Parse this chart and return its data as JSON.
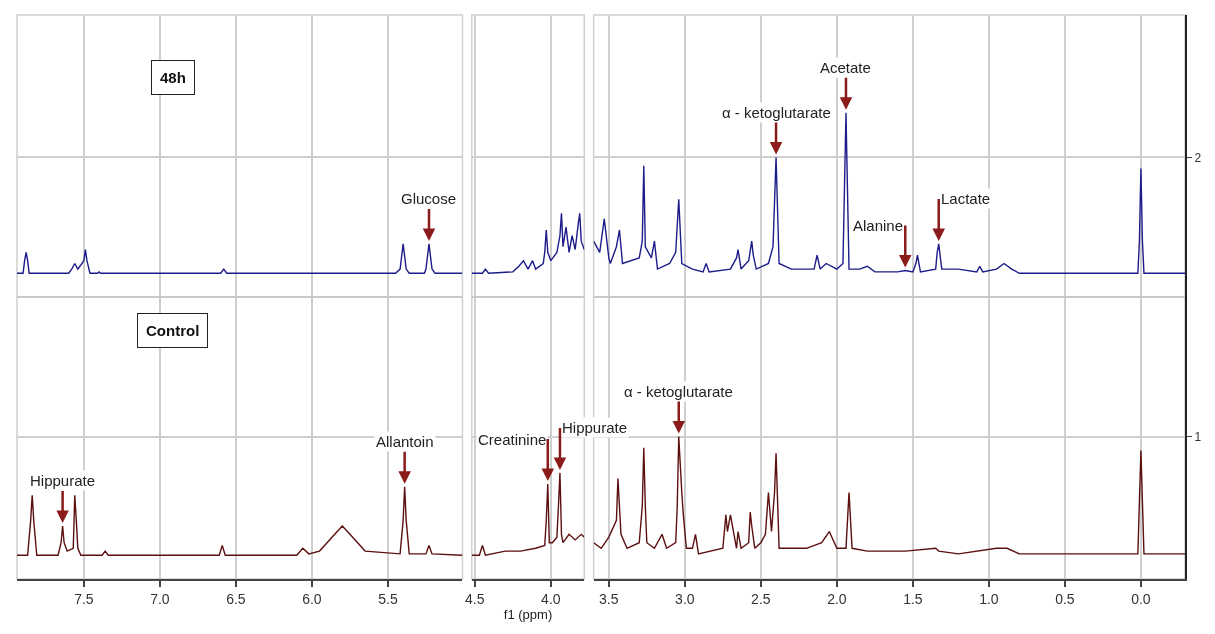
{
  "chart_data": [
    {
      "type": "line",
      "xlim": [
        7.94,
        5.01
      ],
      "xticks": [
        7.5,
        {
          "value": 7,
          "label": "7.0"
        },
        6.5,
        {
          "value": 6,
          "label": "6.0"
        },
        5.5
      ],
      "ylim": [
        0.49,
        2.51
      ],
      "yticks": [
        1,
        2
      ],
      "tick_labels": "x",
      "grid": true,
      "series": [
        {
          "color": "#1c1c8a",
          "x": [
            7.94,
            7.9,
            7.89,
            7.88,
            7.87,
            7.86,
            7.6,
            7.58,
            7.56,
            7.54,
            7.5,
            7.49,
            7.48,
            7.46,
            7.41,
            7.4,
            7.39,
            6.6,
            6.58,
            6.56,
            5.45,
            5.42,
            5.4,
            5.38,
            5.36,
            5.26,
            5.25,
            5.23,
            5.21,
            5.19,
            5.01
          ],
          "values": [
            1.585,
            1.585,
            1.63,
            1.66,
            1.63,
            1.585,
            1.585,
            1.6,
            1.62,
            1.6,
            1.63,
            1.67,
            1.63,
            1.585,
            1.585,
            1.59,
            1.585,
            1.585,
            1.6,
            1.585,
            1.585,
            1.6,
            1.69,
            1.6,
            1.585,
            1.585,
            1.6,
            1.69,
            1.6,
            1.585,
            1.585
          ]
        },
        {
          "color": "#5c0f0f",
          "x": [
            7.94,
            7.87,
            7.85,
            7.84,
            7.83,
            7.81,
            7.67,
            7.65,
            7.64,
            7.63,
            7.61,
            7.57,
            7.56,
            7.55,
            7.54,
            7.52,
            7.38,
            7.36,
            7.34,
            6.61,
            6.59,
            6.57,
            6.1,
            6.06,
            6.02,
            5.95,
            5.85,
            5.8,
            5.75,
            5.65,
            5.42,
            5.4,
            5.39,
            5.38,
            5.36,
            5.25,
            5.23,
            5.21,
            5.01
          ],
          "values": [
            0.575,
            0.575,
            0.7,
            0.79,
            0.7,
            0.575,
            0.575,
            0.62,
            0.68,
            0.62,
            0.59,
            0.6,
            0.79,
            0.7,
            0.6,
            0.575,
            0.575,
            0.59,
            0.575,
            0.575,
            0.61,
            0.575,
            0.575,
            0.6,
            0.58,
            0.59,
            0.65,
            0.68,
            0.65,
            0.59,
            0.58,
            0.7,
            0.82,
            0.7,
            0.58,
            0.58,
            0.61,
            0.58,
            0.575
          ]
        }
      ],
      "ref_lines": [
        {
          "axis": "y",
          "value": 1.5,
          "color": "#c8c8c8"
        }
      ],
      "annotations": [
        "48h",
        "Control",
        {
          "text": "Glucose",
          "x": 5.23,
          "y": 1.69
        },
        {
          "text": "Hippurate",
          "x": 7.64,
          "y": 0.68
        },
        {
          "text": "Allantoin",
          "x": 5.39,
          "y": 0.82
        }
      ]
    },
    {
      "type": "line",
      "xlim": [
        4.52,
        3.78
      ],
      "xticks": [
        4.5,
        {
          "value": 4,
          "label": "4.0"
        }
      ],
      "ylim": [
        0.49,
        2.51
      ],
      "yticks": [
        1,
        2
      ],
      "tick_labels": "x",
      "grid": true,
      "xlabel": "f1 (ppm)",
      "series": [
        {
          "color": "#1c1c8a",
          "x": [
            4.52,
            4.45,
            4.43,
            4.41,
            4.25,
            4.21,
            4.18,
            4.15,
            4.12,
            4.1,
            4.05,
            4.04,
            4.03,
            4.02,
            4.0,
            3.96,
            3.94,
            3.93,
            3.92,
            3.9,
            3.88,
            3.86,
            3.84,
            3.82,
            3.81,
            3.8,
            3.78
          ],
          "values": [
            1.585,
            1.585,
            1.6,
            1.585,
            1.59,
            1.61,
            1.63,
            1.6,
            1.63,
            1.6,
            1.62,
            1.66,
            1.74,
            1.66,
            1.63,
            1.66,
            1.72,
            1.8,
            1.68,
            1.75,
            1.66,
            1.72,
            1.67,
            1.76,
            1.8,
            1.7,
            1.67
          ]
        },
        {
          "color": "#5c0f0f",
          "x": [
            4.52,
            4.47,
            4.45,
            4.43,
            4.3,
            4.2,
            4.1,
            4.04,
            4.03,
            4.02,
            4.01,
            3.99,
            3.96,
            3.95,
            3.94,
            3.93,
            3.92,
            3.88,
            3.84,
            3.8,
            3.78
          ],
          "values": [
            0.575,
            0.575,
            0.61,
            0.575,
            0.59,
            0.59,
            0.6,
            0.61,
            0.7,
            0.83,
            0.62,
            0.62,
            0.64,
            0.75,
            0.87,
            0.65,
            0.62,
            0.65,
            0.63,
            0.65,
            0.64
          ]
        }
      ],
      "ref_lines": [
        {
          "axis": "y",
          "value": 1.5,
          "color": "#c8c8c8"
        }
      ],
      "annotations": [
        {
          "text": "Creatinine",
          "x": 4.02,
          "y": 0.83
        },
        {
          "text": "Hippurate",
          "x": 3.94,
          "y": 0.87
        }
      ]
    },
    {
      "type": "line",
      "xlim": [
        3.6,
        -0.29
      ],
      "xticks": [
        3.5,
        {
          "value": 3,
          "label": "3.0"
        },
        2.5,
        {
          "value": 2,
          "label": "2.0"
        },
        1.5,
        {
          "value": 1,
          "label": "1.0"
        },
        0.5,
        {
          "value": 0,
          "label": "0.0"
        }
      ],
      "ylim": [
        0.49,
        2.51
      ],
      "yticks": [
        1,
        2
      ],
      "grid": true,
      "series": [
        {
          "color": "#1c1c8a",
          "x": [
            3.6,
            3.56,
            3.53,
            3.5,
            3.49,
            3.45,
            3.43,
            3.41,
            3.3,
            3.28,
            3.27,
            3.26,
            3.22,
            3.2,
            3.18,
            3.1,
            3.06,
            3.04,
            3.02,
            2.95,
            2.88,
            2.86,
            2.84,
            2.7,
            2.66,
            2.65,
            2.63,
            2.58,
            2.56,
            2.55,
            2.53,
            2.45,
            2.42,
            2.4,
            2.38,
            2.3,
            2.15,
            2.13,
            2.11,
            2.07,
            2.0,
            1.96,
            1.94,
            1.92,
            1.85,
            1.8,
            1.75,
            1.6,
            1.55,
            1.5,
            1.48,
            1.47,
            1.45,
            1.35,
            1.34,
            1.33,
            1.31,
            1.2,
            1.08,
            1.06,
            1.04,
            0.95,
            0.9,
            0.85,
            0.8,
            0.02,
            0.01,
            0.0,
            -0.01,
            -0.02,
            -0.29
          ],
          "values": [
            1.7,
            1.66,
            1.78,
            1.64,
            1.62,
            1.68,
            1.74,
            1.62,
            1.64,
            1.7,
            1.97,
            1.68,
            1.64,
            1.7,
            1.6,
            1.62,
            1.66,
            1.85,
            1.62,
            1.6,
            1.59,
            1.62,
            1.59,
            1.6,
            1.64,
            1.67,
            1.6,
            1.63,
            1.7,
            1.65,
            1.6,
            1.62,
            1.68,
            2.0,
            1.62,
            1.6,
            1.6,
            1.65,
            1.6,
            1.62,
            1.6,
            1.62,
            2.16,
            1.6,
            1.6,
            1.61,
            1.59,
            1.59,
            1.595,
            1.59,
            1.62,
            1.65,
            1.59,
            1.6,
            1.66,
            1.69,
            1.6,
            1.6,
            1.59,
            1.61,
            1.59,
            1.6,
            1.62,
            1.6,
            1.585,
            1.585,
            1.7,
            1.96,
            1.7,
            1.585,
            1.585
          ]
        },
        {
          "color": "#5c0f0f",
          "x": [
            3.6,
            3.55,
            3.5,
            3.45,
            3.44,
            3.43,
            3.42,
            3.38,
            3.3,
            3.28,
            3.27,
            3.26,
            3.25,
            3.2,
            3.15,
            3.12,
            3.06,
            3.05,
            3.04,
            3.02,
            3.01,
            2.99,
            2.95,
            2.93,
            2.91,
            2.75,
            2.73,
            2.72,
            2.7,
            2.66,
            2.65,
            2.63,
            2.58,
            2.57,
            2.56,
            2.54,
            2.5,
            2.47,
            2.45,
            2.43,
            2.41,
            2.4,
            2.38,
            2.2,
            2.1,
            2.05,
            2.0,
            1.94,
            1.92,
            1.9,
            1.8,
            1.55,
            1.35,
            1.33,
            1.2,
            0.95,
            0.92,
            0.88,
            0.8,
            0.02,
            0.0,
            -0.02,
            -0.29
          ],
          "values": [
            0.62,
            0.6,
            0.64,
            0.7,
            0.85,
            0.75,
            0.65,
            0.6,
            0.62,
            0.75,
            0.96,
            0.75,
            0.62,
            0.6,
            0.65,
            0.6,
            0.62,
            0.75,
            1.0,
            0.8,
            0.72,
            0.6,
            0.6,
            0.65,
            0.58,
            0.6,
            0.72,
            0.66,
            0.72,
            0.6,
            0.66,
            0.6,
            0.62,
            0.73,
            0.68,
            0.6,
            0.62,
            0.65,
            0.8,
            0.66,
            0.8,
            0.94,
            0.6,
            0.6,
            0.62,
            0.66,
            0.6,
            0.6,
            0.8,
            0.6,
            0.59,
            0.59,
            0.6,
            0.59,
            0.58,
            0.6,
            0.6,
            0.6,
            0.58,
            0.58,
            0.95,
            0.58,
            0.58
          ]
        }
      ],
      "ref_lines": [
        {
          "axis": "y",
          "value": 1.5,
          "color": "#c8c8c8"
        }
      ],
      "annotations": [
        {
          "text": "α - ketoglutarate",
          "x": 2.4,
          "y": 2.0
        },
        {
          "text": "Acetate",
          "x": 1.94,
          "y": 2.16
        },
        {
          "text": "Alanine",
          "x": 1.55,
          "y": 1.595
        },
        {
          "text": "Lactate",
          "x": 1.33,
          "y": 1.69
        },
        {
          "text": "α - ketoglutarate",
          "x": 3.04,
          "y": 1.0
        }
      ]
    }
  ]
}
